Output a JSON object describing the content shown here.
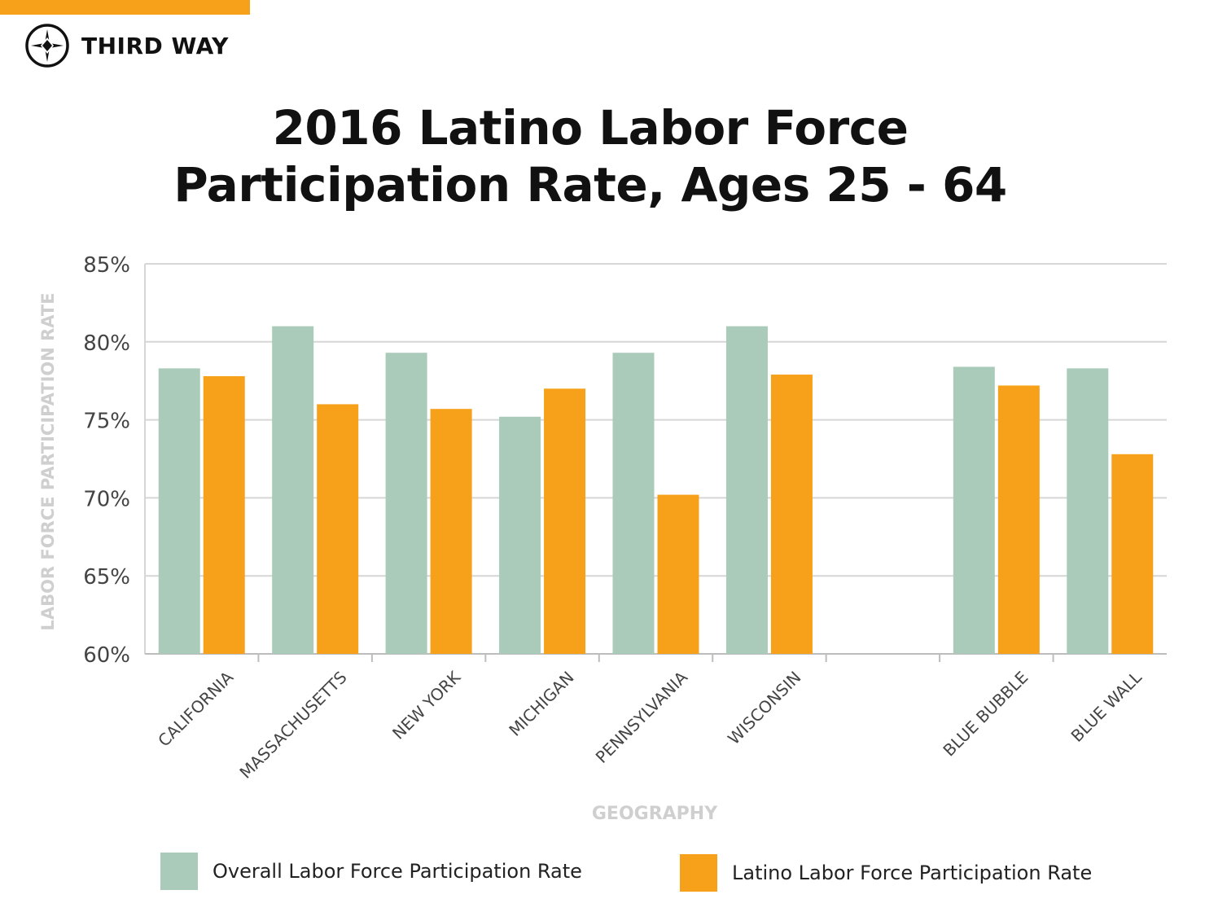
{
  "brand": {
    "name": "THIRD WAY",
    "accent_color": "#f7a11a",
    "logo_icon": "compass-star-icon"
  },
  "title": {
    "line1": "2016 Latino Labor Force",
    "line2": "Participation Rate, Ages 25 - 64"
  },
  "colors": {
    "overall": "#aacbb9",
    "latino": "#f7a11a",
    "grid": "#d6d6d6",
    "axis_label": "#cfcfcf",
    "tick": "#444444"
  },
  "chart_data": {
    "type": "bar",
    "title": "2016 Latino Labor Force Participation Rate, Ages 25 - 64",
    "xlabel": "GEOGRAPHY",
    "ylabel": "LABOR FORCE PARTICIPATION RATE",
    "ylim": [
      60,
      85
    ],
    "yticks": [
      60,
      65,
      70,
      75,
      80,
      85
    ],
    "ytick_labels": [
      "60%",
      "65%",
      "70%",
      "75%",
      "80%",
      "85%"
    ],
    "grid": true,
    "categories": [
      "CALIFORNIA",
      "MASSACHUSETTS",
      "NEW YORK",
      "MICHIGAN",
      "PENNSYLVANIA",
      "WISCONSIN",
      "",
      "BLUE BUBBLE",
      "BLUE WALL"
    ],
    "series": [
      {
        "name": "Overall Labor Force Participation Rate",
        "values": [
          78.3,
          81.0,
          79.3,
          75.2,
          79.3,
          81.0,
          null,
          78.4,
          78.3
        ]
      },
      {
        "name": "Latino Labor Force Participation Rate",
        "values": [
          77.8,
          76.0,
          75.7,
          77.0,
          70.2,
          77.9,
          null,
          77.2,
          72.8
        ]
      }
    ],
    "legend_position": "bottom"
  }
}
